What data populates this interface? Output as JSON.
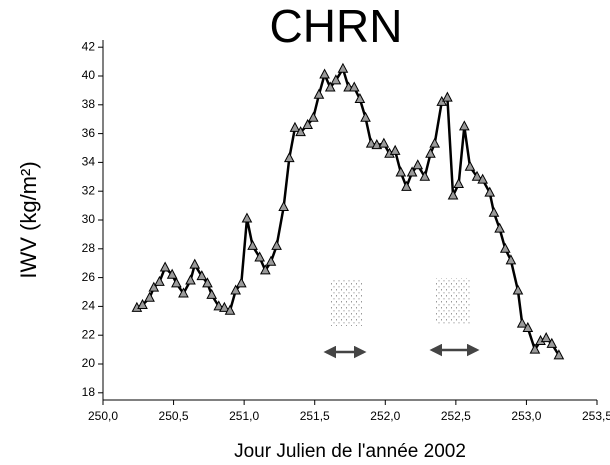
{
  "chart_data": {
    "type": "line",
    "title": "CHRN",
    "x_label": "Jour Julien de l'année 2002",
    "y_label": "IWV (kg/m²)",
    "x": [
      250.24,
      250.28,
      250.33,
      250.36,
      250.4,
      250.44,
      250.49,
      250.52,
      250.57,
      250.62,
      250.65,
      250.7,
      250.74,
      250.77,
      250.82,
      250.86,
      250.9,
      250.94,
      250.98,
      251.02,
      251.06,
      251.11,
      251.15,
      251.19,
      251.23,
      251.28,
      251.32,
      251.36,
      251.4,
      251.45,
      251.49,
      251.53,
      251.57,
      251.61,
      251.65,
      251.7,
      251.74,
      251.78,
      251.82,
      251.86,
      251.9,
      251.94,
      251.99,
      252.03,
      252.07,
      252.11,
      252.15,
      252.19,
      252.23,
      252.28,
      252.32,
      252.35,
      252.4,
      252.44,
      252.48,
      252.52,
      252.56,
      252.6,
      252.65,
      252.69,
      252.74,
      252.77,
      252.81,
      252.85,
      252.89,
      252.94,
      252.97,
      253.01,
      253.06,
      253.1,
      253.14,
      253.18,
      253.23
    ],
    "values": [
      23.9,
      24.1,
      24.6,
      25.3,
      25.7,
      26.7,
      26.2,
      25.6,
      24.9,
      25.8,
      26.9,
      26.1,
      25.6,
      24.8,
      24.0,
      23.9,
      23.7,
      25.1,
      25.6,
      30.1,
      28.2,
      27.4,
      26.5,
      27.1,
      28.2,
      30.9,
      34.3,
      36.4,
      36.1,
      36.6,
      37.1,
      38.7,
      40.1,
      39.2,
      39.7,
      40.5,
      39.2,
      39.2,
      38.4,
      37.1,
      35.3,
      35.2,
      35.3,
      34.6,
      34.8,
      33.3,
      32.3,
      33.3,
      33.8,
      33.0,
      34.6,
      35.3,
      38.2,
      38.5,
      31.7,
      32.5,
      36.5,
      33.7,
      33.0,
      32.8,
      31.9,
      30.5,
      29.4,
      28.0,
      27.2,
      25.1,
      22.8,
      22.5,
      21.0,
      21.6,
      21.8,
      21.4,
      20.6
    ],
    "color": "#000000",
    "marker_color": "#9a9a9a",
    "xlim": [
      250.0,
      253.5
    ],
    "xticks": [
      {
        "value": 250.0,
        "label": "250,0"
      },
      {
        "value": 250.5,
        "label": "250,5"
      },
      {
        "value": 251.0,
        "label": "251,0"
      },
      {
        "value": 251.5,
        "label": "251,5"
      },
      {
        "value": 252.0,
        "label": "252,0"
      },
      {
        "value": 252.5,
        "label": "252,5"
      },
      {
        "value": 253.0,
        "label": "253,0"
      },
      {
        "value": 253.5,
        "label": "253,5"
      }
    ],
    "ylim": [
      17.5,
      42.5
    ],
    "yticks": [
      18,
      20,
      22,
      24,
      26,
      28,
      30,
      32,
      34,
      36,
      38,
      40,
      42
    ]
  }
}
